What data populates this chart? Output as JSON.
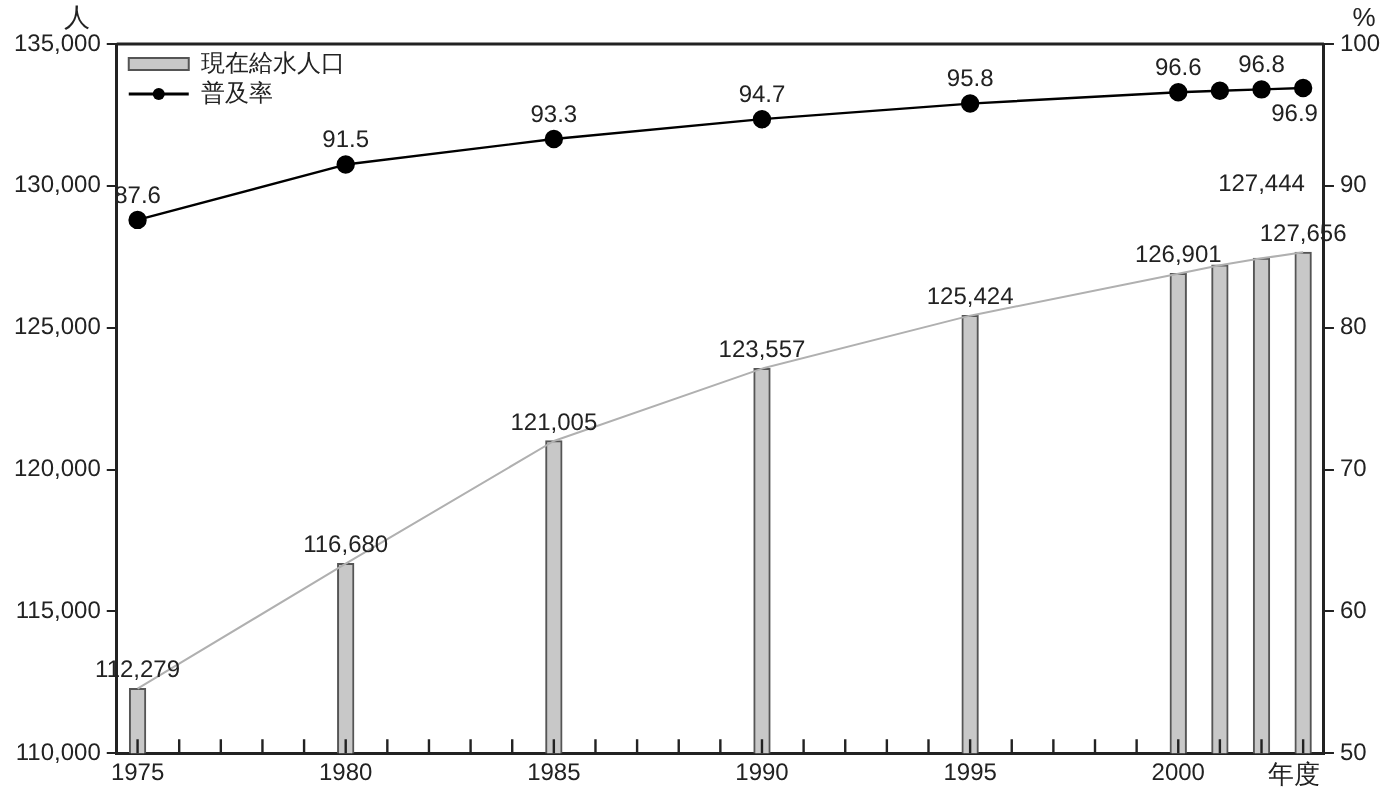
{
  "chart_data": {
    "type": "bar",
    "xlabel": "年度",
    "ylabel": "人",
    "y2label": "%",
    "x": [
      1975,
      1980,
      1985,
      1990,
      1995,
      2000,
      2001,
      2002,
      2003
    ],
    "series": [
      {
        "name": "現在給水人口",
        "color": "#c8c8c8",
        "values": [
          112279,
          116680,
          121005,
          123557,
          125424,
          126901,
          127200,
          127444,
          127656
        ],
        "value_labels": [
          "112,279",
          "116,680",
          "121,005",
          "123,557",
          "125,424",
          "126,901",
          null,
          "127,444",
          "127,656"
        ]
      },
      {
        "type": "line",
        "color": "#b0b0b0",
        "marker": "none",
        "values": [
          112279,
          116680,
          121005,
          123557,
          125424,
          126901,
          127200,
          127444,
          127656
        ]
      },
      {
        "name": "普及率",
        "type": "line",
        "axis": "y2",
        "color": "#000000",
        "marker": "circle",
        "values": [
          87.6,
          91.5,
          93.3,
          94.7,
          95.8,
          96.6,
          96.7,
          96.8,
          96.9
        ],
        "value_labels": [
          "87.6",
          "91.5",
          "93.3",
          "94.7",
          "95.8",
          "96.6",
          null,
          "96.8",
          "96.9"
        ]
      }
    ],
    "xlim": [
      1974.5,
      2003.5
    ],
    "xticks": [
      1975,
      {
        "value": 1976,
        "label": null
      },
      {
        "value": 1977,
        "label": null
      },
      {
        "value": 1978,
        "label": null
      },
      {
        "value": 1979,
        "label": null
      },
      1980,
      {
        "value": 1981,
        "label": null
      },
      {
        "value": 1982,
        "label": null
      },
      {
        "value": 1983,
        "label": null
      },
      {
        "value": 1984,
        "label": null
      },
      1985,
      {
        "value": 1986,
        "label": null
      },
      {
        "value": 1987,
        "label": null
      },
      {
        "value": 1988,
        "label": null
      },
      {
        "value": 1989,
        "label": null
      },
      1990,
      {
        "value": 1991,
        "label": null
      },
      {
        "value": 1992,
        "label": null
      },
      {
        "value": 1993,
        "label": null
      },
      {
        "value": 1994,
        "label": null
      },
      1995,
      {
        "value": 1996,
        "label": null
      },
      {
        "value": 1997,
        "label": null
      },
      {
        "value": 1998,
        "label": null
      },
      {
        "value": 1999,
        "label": null
      },
      2000,
      {
        "value": 2001,
        "label": null
      },
      {
        "value": 2002,
        "label": null
      },
      {
        "value": 2003,
        "label": null
      }
    ],
    "ylim": [
      110000,
      135000
    ],
    "yticks": [
      {
        "value": 110000,
        "label": "110,000"
      },
      {
        "value": 115000,
        "label": "115,000"
      },
      {
        "value": 120000,
        "label": "120,000"
      },
      {
        "value": 125000,
        "label": "125,000"
      },
      {
        "value": 130000,
        "label": "130,000"
      },
      {
        "value": 135000,
        "label": "135,000"
      }
    ],
    "y2lim": [
      50,
      100
    ],
    "y2ticks": [
      50,
      60,
      70,
      80,
      90,
      100
    ],
    "grid": false,
    "legend": "top left"
  }
}
